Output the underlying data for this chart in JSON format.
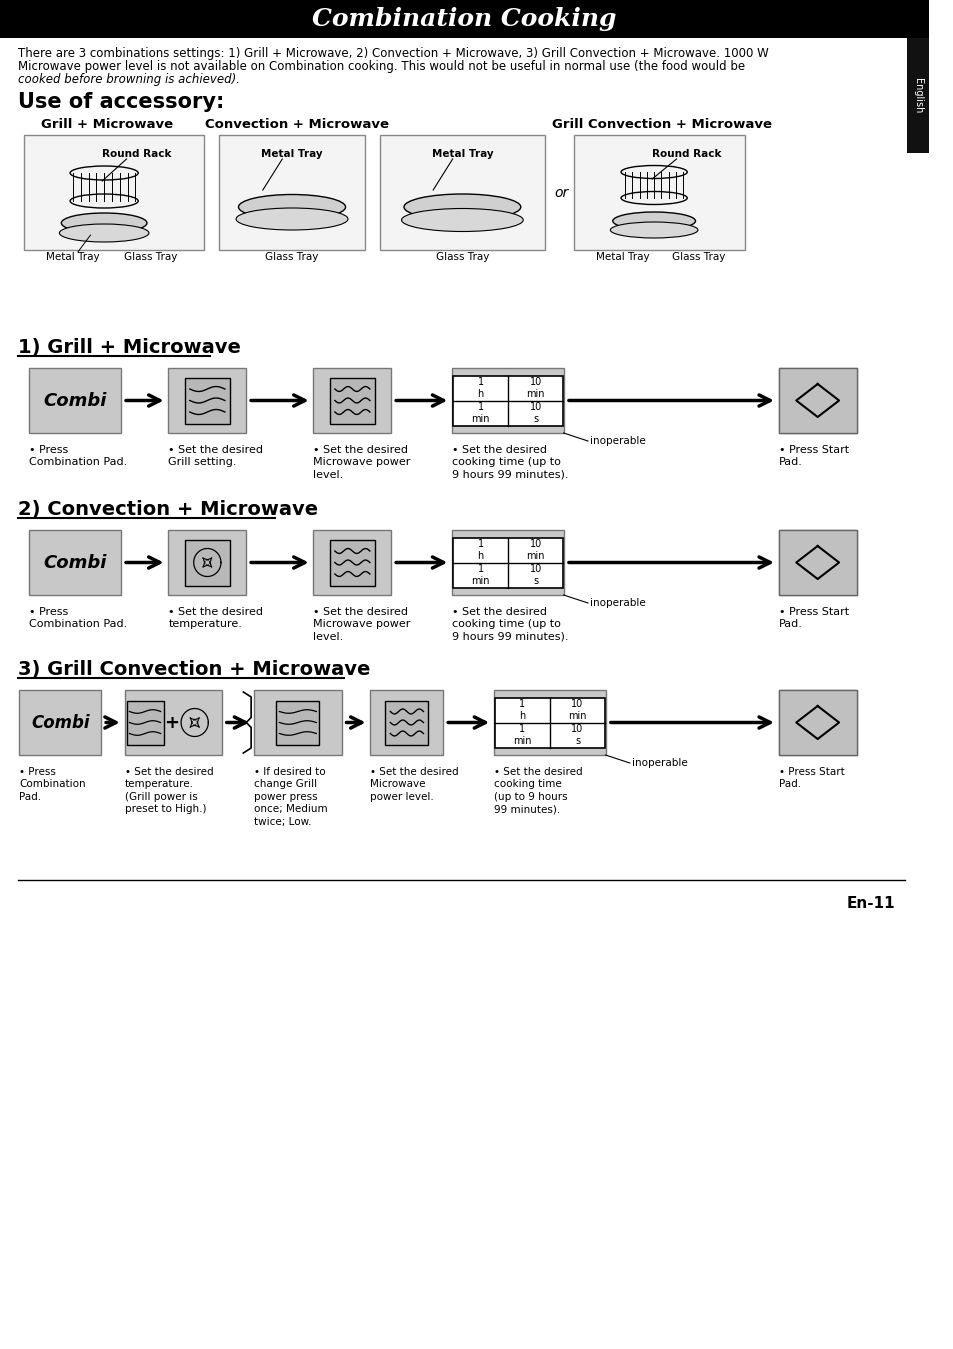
{
  "title": "Combination Cooking",
  "page_bg": "#ffffff",
  "intro_text_line1": "There are 3 combinations settings: 1) Grill + Microwave, 2) Convection + Microwave, 3) Grill Convection + Microwave. 1000 W",
  "intro_text_line2": "Microwave power level is not available on Combination cooking. This would not be useful in normal use (the food would be",
  "intro_text_line3": "cooked before browning is achieved).",
  "accessory_title": "Use of accessory:",
  "col_headers": [
    "Grill + Microwave",
    "Convection + Microwave",
    "Grill Convection + Microwave"
  ],
  "section_titles": [
    "1) Grill + Microwave",
    "2) Convection + Microwave",
    "3) Grill Convection + Microwave"
  ],
  "english_sidebar": "English",
  "page_number": "En-11",
  "inoperable_label": "inoperable",
  "section1_bullets": [
    "Press\nCombination Pad.",
    "Set the desired\nGrill setting.",
    "Set the desired\nMicrowave power\nlevel.",
    "Set the desired\ncooking time (up to\n9 hours 99 minutes).",
    "Press Start\nPad."
  ],
  "section2_bullets": [
    "Press\nCombination Pad.",
    "Set the desired\ntemperature.",
    "Set the desired\nMicrowave power\nlevel.",
    "Set the desired\ncooking time (up to\n9 hours 99 minutes).",
    "Press Start\nPad."
  ],
  "section3_bullets": [
    "Press\nCombination\nPad.",
    "Set the desired\ntemperature.\n(Grill power is\npreset to High.)",
    "If desired to\nchange Grill\npower press\nonce; Medium\ntwice; Low.",
    "Set the desired\nMicrowave\npower level.",
    "Set the desired\ncooking time\n(up to 9 hours\n99 minutes).",
    "Press Start\nPad."
  ]
}
